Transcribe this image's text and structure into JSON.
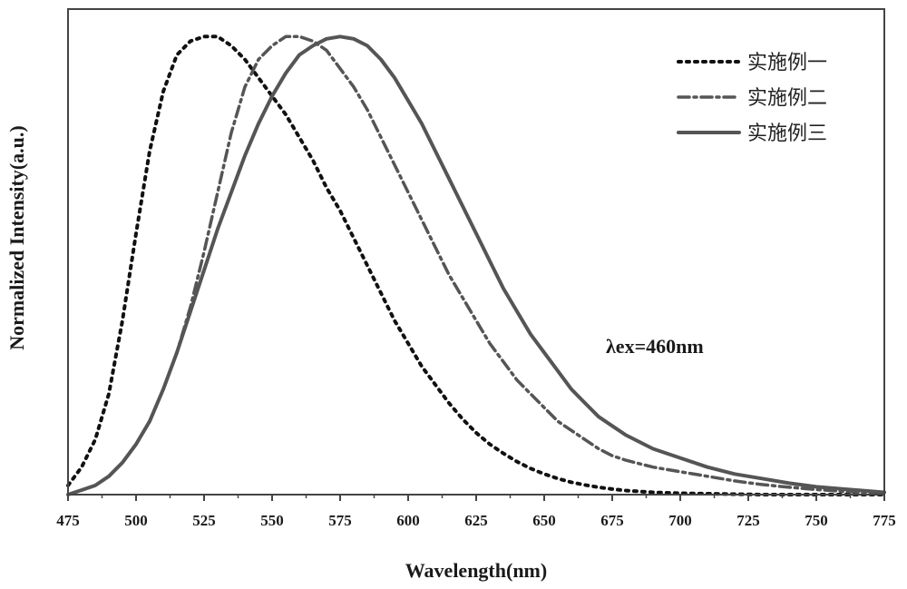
{
  "chart_data": {
    "type": "line",
    "title": "",
    "xlabel": "Wavelength(nm)",
    "ylabel": "Normalized Intensity(a.u.)",
    "xlim": [
      475,
      775
    ],
    "ylim": [
      0,
      1.06
    ],
    "xticks": [
      475,
      500,
      525,
      550,
      575,
      600,
      625,
      650,
      675,
      700,
      725,
      750,
      775
    ],
    "yticks_shown": false,
    "grid": false,
    "legend_position": "top-right",
    "annotation": "λex=460nm",
    "series": [
      {
        "name": "实施例一",
        "style": "dotted",
        "color": "#111111",
        "x": [
          475,
          480,
          485,
          490,
          495,
          500,
          505,
          510,
          515,
          520,
          525,
          530,
          535,
          540,
          545,
          550,
          555,
          560,
          565,
          570,
          575,
          580,
          585,
          590,
          595,
          600,
          605,
          610,
          615,
          620,
          625,
          630,
          635,
          640,
          645,
          650,
          655,
          660,
          665,
          670,
          675,
          680,
          690,
          700,
          710,
          720,
          730,
          740,
          750,
          760,
          775
        ],
        "y": [
          0.02,
          0.06,
          0.12,
          0.22,
          0.38,
          0.57,
          0.75,
          0.88,
          0.96,
          0.99,
          1.0,
          1.0,
          0.98,
          0.95,
          0.91,
          0.87,
          0.83,
          0.78,
          0.73,
          0.67,
          0.62,
          0.56,
          0.5,
          0.44,
          0.38,
          0.33,
          0.28,
          0.24,
          0.2,
          0.165,
          0.135,
          0.11,
          0.09,
          0.072,
          0.057,
          0.045,
          0.035,
          0.027,
          0.021,
          0.016,
          0.012,
          0.009,
          0.005,
          0.003,
          0.002,
          0.001,
          0.0,
          0.0,
          0.0,
          0.0,
          0.0
        ]
      },
      {
        "name": "实施例二",
        "style": "dash-dot",
        "color": "#555555",
        "x": [
          475,
          480,
          485,
          490,
          495,
          500,
          505,
          510,
          515,
          520,
          525,
          530,
          535,
          540,
          545,
          550,
          555,
          560,
          565,
          570,
          575,
          580,
          585,
          590,
          595,
          600,
          605,
          610,
          615,
          620,
          625,
          630,
          635,
          640,
          645,
          650,
          655,
          660,
          665,
          670,
          675,
          680,
          690,
          700,
          710,
          720,
          730,
          740,
          750,
          760,
          775
        ],
        "y": [
          0.0,
          0.01,
          0.02,
          0.04,
          0.07,
          0.11,
          0.16,
          0.23,
          0.31,
          0.41,
          0.53,
          0.66,
          0.79,
          0.89,
          0.95,
          0.98,
          1.0,
          1.0,
          0.99,
          0.97,
          0.93,
          0.89,
          0.84,
          0.78,
          0.72,
          0.66,
          0.6,
          0.54,
          0.48,
          0.43,
          0.38,
          0.33,
          0.29,
          0.25,
          0.22,
          0.19,
          0.16,
          0.14,
          0.12,
          0.1,
          0.085,
          0.075,
          0.06,
          0.05,
          0.04,
          0.03,
          0.022,
          0.016,
          0.011,
          0.007,
          0.003
        ]
      },
      {
        "name": "实施例三",
        "style": "solid",
        "color": "#555555",
        "x": [
          475,
          480,
          485,
          490,
          495,
          500,
          505,
          510,
          515,
          520,
          525,
          530,
          535,
          540,
          545,
          550,
          555,
          560,
          565,
          570,
          575,
          580,
          585,
          590,
          595,
          600,
          605,
          610,
          615,
          620,
          625,
          630,
          635,
          640,
          645,
          650,
          655,
          660,
          665,
          670,
          675,
          680,
          690,
          700,
          710,
          720,
          730,
          740,
          750,
          760,
          775
        ],
        "y": [
          0.0,
          0.01,
          0.02,
          0.04,
          0.07,
          0.11,
          0.16,
          0.23,
          0.31,
          0.4,
          0.49,
          0.58,
          0.66,
          0.74,
          0.81,
          0.87,
          0.92,
          0.96,
          0.98,
          0.995,
          1.0,
          0.995,
          0.98,
          0.95,
          0.91,
          0.86,
          0.81,
          0.75,
          0.69,
          0.63,
          0.57,
          0.51,
          0.45,
          0.4,
          0.35,
          0.31,
          0.27,
          0.23,
          0.2,
          0.17,
          0.15,
          0.13,
          0.1,
          0.08,
          0.06,
          0.045,
          0.035,
          0.025,
          0.017,
          0.012,
          0.005
        ]
      }
    ]
  }
}
